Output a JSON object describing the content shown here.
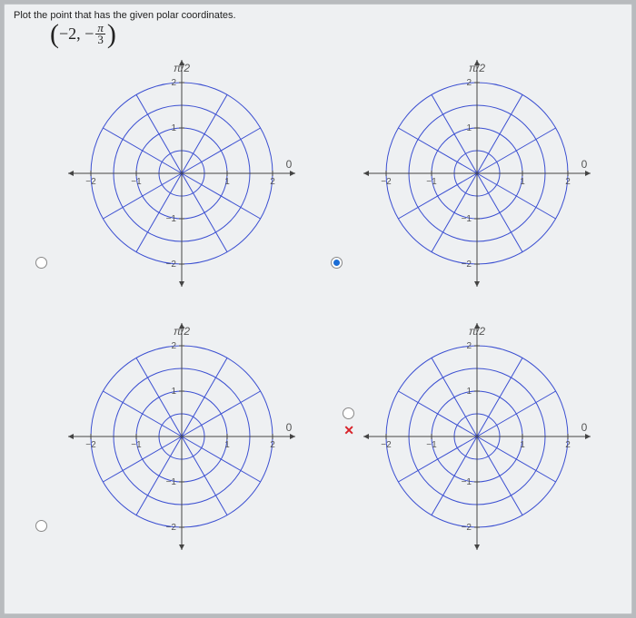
{
  "prompt": "Plot the point that has the given polar coordinates.",
  "coord": {
    "r": "−2",
    "neg": "−",
    "num": "π",
    "den": "3"
  },
  "axis": {
    "top_label": "π/2",
    "right_label": "0",
    "ticks": [
      "−2",
      "−1",
      "1",
      "2",
      "−1",
      "−2",
      "1",
      "2"
    ],
    "tick_pos_x": [
      -2,
      -1,
      1,
      2
    ],
    "tick_label_x": [
      "−2",
      "−1",
      "1",
      "2"
    ],
    "tick_pos_y": [
      2,
      1,
      -1,
      -2
    ],
    "tick_label_y": [
      "2",
      "1",
      "−1",
      "−2"
    ]
  },
  "style": {
    "plot_size": 270,
    "circle_color": "#3b4fd1",
    "axis_color": "#444",
    "grid_stroke": 1,
    "axis_stroke": 1,
    "bg": "#eef0f2",
    "label_font": "10",
    "outer_r": 100,
    "angles_deg": [
      0,
      30,
      60,
      90,
      120,
      150,
      180,
      210,
      240,
      270,
      300,
      330
    ],
    "radii": [
      25,
      50,
      75,
      100
    ]
  },
  "options": [
    {
      "id": "opt-a",
      "selected": false,
      "mark": ""
    },
    {
      "id": "opt-b",
      "selected": true,
      "mark": ""
    },
    {
      "id": "opt-c",
      "selected": false,
      "mark": ""
    },
    {
      "id": "opt-d",
      "selected": false,
      "mark": "x"
    }
  ]
}
